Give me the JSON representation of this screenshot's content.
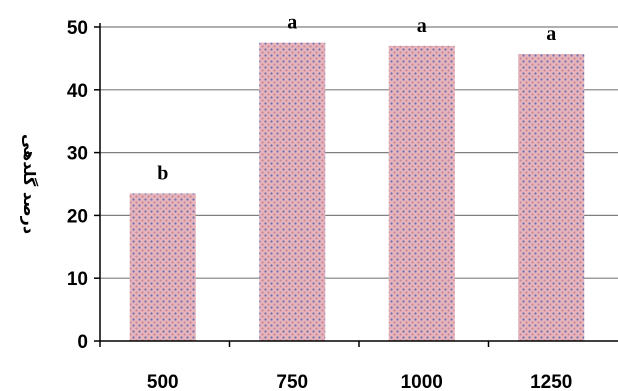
{
  "chart_data": {
    "type": "bar",
    "categories": [
      "500",
      "750",
      "1000",
      "1250"
    ],
    "values": [
      23.5,
      47.5,
      47.0,
      45.7
    ],
    "significance_letters": [
      "b",
      "a",
      "a",
      "a"
    ],
    "title": "",
    "xlabel": "",
    "ylabel": "درصد گلدهی",
    "ylim": [
      0,
      50
    ],
    "yticks": [
      0,
      10,
      20,
      30,
      40,
      50
    ],
    "grid": "horizontal",
    "legend": "none"
  },
  "colors": {
    "bar_fill": "#e8b4bc",
    "bar_pattern": "#6a6fb0",
    "grid": "#7f7f7f",
    "axis": "#000000"
  }
}
